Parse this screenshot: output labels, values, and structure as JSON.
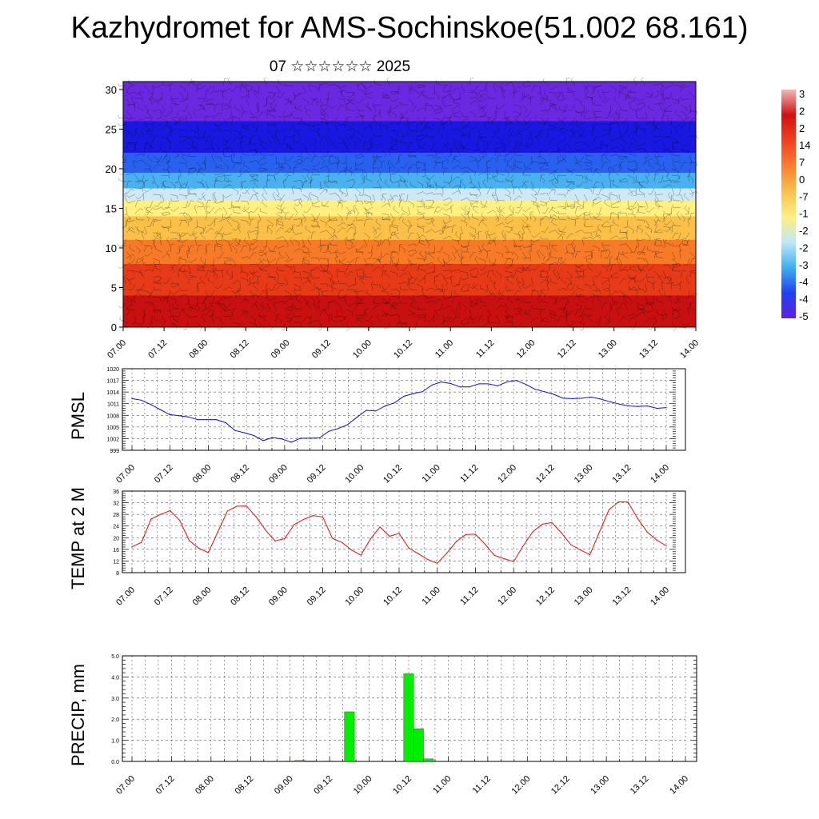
{
  "header": {
    "title": "Kazhydromet for AMS-Sochinskoe(51.002 68.161)",
    "subtitle": "07 ☆☆☆☆☆☆ 2025"
  },
  "colors": {
    "pmsl_line": "#1010d0",
    "temp_line": "#e01010",
    "precip_bar": "#00ee00",
    "grid": "#000000"
  },
  "chart_data": [
    {
      "id": "wind-temp-section",
      "type": "heatmap",
      "title": "",
      "xlabel": "",
      "ylabel": "",
      "x_tick_labels": [
        "07.00",
        "07.12",
        "08.00",
        "08.12",
        "09.00",
        "09.12",
        "10.00",
        "10.12",
        "11.00",
        "11.12",
        "12.00",
        "12.12",
        "13.00",
        "13.12",
        "14.00"
      ],
      "y_ticks": [
        0,
        5,
        10,
        15,
        20,
        25,
        30
      ],
      "ylim": [
        0,
        31
      ],
      "colorbar_labels": [
        "3",
        "2",
        "2",
        "14",
        "7",
        "0",
        "-7",
        "-1",
        "-2",
        "-2",
        "-3",
        "-4",
        "-4",
        "-5"
      ],
      "colorbar_colors": [
        "#f2b8b8",
        "#d01010",
        "#f04020",
        "#f88030",
        "#f8c050",
        "#fff080",
        "#c0e8f8",
        "#40b0f0",
        "#2040f0",
        "#6020e0"
      ],
      "level_color_bands": [
        {
          "from": 0,
          "to": 4,
          "color": "#c81010"
        },
        {
          "from": 4,
          "to": 8,
          "color": "#e63a18"
        },
        {
          "from": 8,
          "to": 11,
          "color": "#f77a28"
        },
        {
          "from": 11,
          "to": 14,
          "color": "#fbc048"
        },
        {
          "from": 14,
          "to": 16,
          "color": "#fff080"
        },
        {
          "from": 16,
          "to": 17.5,
          "color": "#cfe8f5"
        },
        {
          "from": 17.5,
          "to": 19.5,
          "color": "#4ab0f0"
        },
        {
          "from": 19.5,
          "to": 22,
          "color": "#2a60f0"
        },
        {
          "from": 22,
          "to": 26,
          "color": "#1818e0"
        },
        {
          "from": 26,
          "to": 31,
          "color": "#6a28e0"
        }
      ]
    },
    {
      "id": "pmsl",
      "type": "line",
      "title": "",
      "ylabel": "PMSL",
      "xlabel": "",
      "x_tick_labels": [
        "07.00",
        "07.12",
        "08.00",
        "08.12",
        "09.00",
        "09.12",
        "10.00",
        "10.12",
        "11.00",
        "11.12",
        "12.00",
        "12.12",
        "13.00",
        "13.12",
        "14.00"
      ],
      "y_ticks": [
        999,
        1002,
        1005,
        1008,
        1011,
        1014,
        1017,
        1020
      ],
      "ylim": [
        999,
        1020
      ],
      "series": [
        {
          "values": [
            1012.3,
            1011.9,
            1010.8,
            1009.5,
            1008.2,
            1007.9,
            1007.6,
            1006.9,
            1006.9,
            1006.9,
            1006.1,
            1004.1,
            1003.5,
            1002.8,
            1001.5,
            1002.3,
            1001.9,
            1001.1,
            1002.1,
            1002.1,
            1002.2,
            1003.9,
            1004.6,
            1005.6,
            1007.5,
            1009.3,
            1009.1,
            1010.4,
            1011.2,
            1012.9,
            1013.6,
            1014.1,
            1015.8,
            1016.6,
            1016.2,
            1015.3,
            1015.3,
            1016.1,
            1016.1,
            1015.6,
            1016.6,
            1017.0,
            1016.0,
            1014.7,
            1014.1,
            1013.4,
            1012.4,
            1012.3,
            1012.4,
            1012.7,
            1012.2,
            1011.5,
            1010.9,
            1010.4,
            1010.3,
            1010.4,
            1009.8,
            1010.0
          ]
        }
      ]
    },
    {
      "id": "temp2m",
      "type": "line",
      "title": "",
      "ylabel": "TEMP at 2 M",
      "xlabel": "",
      "x_tick_labels": [
        "07.00",
        "07.12",
        "08.00",
        "08.12",
        "09.00",
        "09.12",
        "10.00",
        "10.12",
        "11.00",
        "11.12",
        "12.00",
        "12.12",
        "13.00",
        "13.12",
        "14.00"
      ],
      "y_ticks": [
        8,
        12,
        16,
        20,
        24,
        28,
        32,
        36
      ],
      "ylim": [
        8,
        36
      ],
      "series": [
        {
          "values": [
            16.9,
            18.4,
            26.4,
            28.0,
            29.3,
            26.0,
            19.0,
            16.4,
            14.9,
            22.0,
            29.1,
            30.8,
            30.9,
            27.2,
            22.6,
            18.9,
            19.7,
            24.5,
            26.3,
            27.6,
            27.1,
            19.8,
            18.4,
            15.8,
            14.0,
            19.6,
            23.7,
            20.5,
            21.5,
            16.5,
            14.5,
            12.5,
            11.2,
            14.7,
            18.7,
            21.1,
            21.2,
            17.8,
            13.9,
            12.8,
            11.8,
            17.2,
            22.0,
            24.6,
            25.2,
            21.7,
            17.6,
            15.8,
            14.2,
            22.0,
            29.6,
            32.3,
            32.2,
            26.6,
            22.0,
            19.2,
            17.2
          ]
        }
      ]
    },
    {
      "id": "precip",
      "type": "bar",
      "title": "",
      "ylabel": "PRECIP, mm",
      "xlabel": "",
      "x_tick_labels": [
        "07.00",
        "07.12",
        "08.00",
        "08.12",
        "09.00",
        "09.12",
        "10.00",
        "10.12",
        "11.00",
        "11.12",
        "12.00",
        "12.12",
        "13.00",
        "13.12",
        "14.00"
      ],
      "y_tick_labels": [
        "0.0",
        "1.0",
        "2.0",
        "3.0",
        "4.0",
        "5.0"
      ],
      "y_ticks": [
        0,
        1,
        2,
        3,
        4,
        5
      ],
      "ylim": [
        0,
        5
      ],
      "series": [
        {
          "values": [
            0,
            0,
            0,
            0,
            0,
            0,
            0,
            0,
            0,
            0,
            0,
            0,
            0,
            0,
            0,
            0,
            0.02,
            0.05,
            0.03,
            0,
            0.02,
            0,
            2.35,
            0,
            0,
            0,
            0,
            0,
            4.15,
            1.55,
            0.12,
            0,
            0,
            0,
            0,
            0,
            0,
            0,
            0,
            0,
            0,
            0,
            0,
            0,
            0,
            0,
            0,
            0,
            0,
            0,
            0,
            0,
            0,
            0,
            0,
            0,
            0
          ]
        }
      ]
    }
  ]
}
